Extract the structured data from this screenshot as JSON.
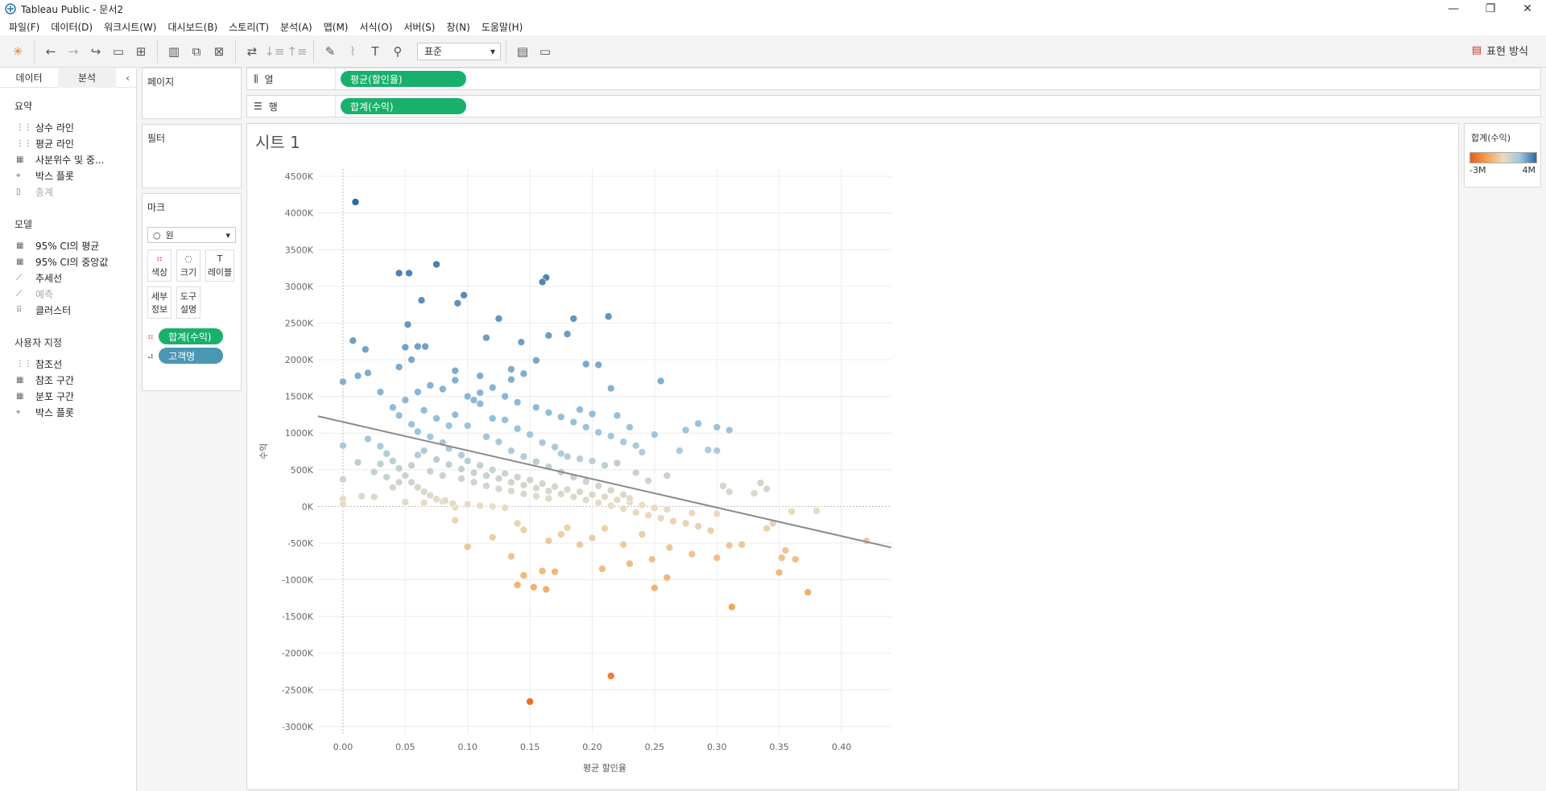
{
  "window": {
    "title": "Tableau Public - 문서2",
    "controls": [
      "—",
      "❐",
      "✕"
    ]
  },
  "menu": [
    "파일(F)",
    "데이터(D)",
    "워크시트(W)",
    "대시보드(B)",
    "스토리(T)",
    "분석(A)",
    "맵(M)",
    "서식(O)",
    "서버(S)",
    "창(N)",
    "도움말(H)"
  ],
  "toolbar": {
    "fit_select": "표준",
    "show_me": "표현 방식"
  },
  "left_pane": {
    "tabs": [
      "데이터",
      "분석"
    ],
    "summary": {
      "title": "요약",
      "items": [
        "상수 라인",
        "평균 라인",
        "사분위수 및 중...",
        "박스 플롯",
        "총계"
      ]
    },
    "model": {
      "title": "모델",
      "items": [
        "95% CI의 평균",
        "95% CI의 중앙값",
        "추세선",
        "예측",
        "클러스터"
      ]
    },
    "custom": {
      "title": "사용자 지정",
      "items": [
        "참조선",
        "참조 구간",
        "분포 구간",
        "박스 플롯"
      ]
    }
  },
  "shelves": {
    "pages": "페이지",
    "filters": "필터",
    "columns_label": "열",
    "columns_pill": "평균(할인율)",
    "rows_label": "행",
    "rows_pill": "합계(수익)"
  },
  "marks": {
    "title": "마크",
    "type": "원",
    "buttons": [
      "색상",
      "크기",
      "레이블",
      "세부\n정보",
      "도구\n설명"
    ],
    "fields": [
      "합계(수익)",
      "고객명"
    ]
  },
  "legend": {
    "title": "합계(수익)",
    "min": "-3M",
    "max": "4M",
    "colors": [
      "#e65d1a",
      "#f5a34d",
      "#e8dcc4",
      "#9ec5dd",
      "#2f6aa0"
    ]
  },
  "chart_data": {
    "type": "scatter",
    "title": "시트 1",
    "xlabel": "평균 할인율",
    "ylabel": "수익",
    "xlim": [
      -0.02,
      0.44
    ],
    "ylim": [
      -3100,
      4600
    ],
    "x_ticks": [
      "0.00",
      "0.05",
      "0.10",
      "0.15",
      "0.20",
      "0.25",
      "0.30",
      "0.35",
      "0.40"
    ],
    "y_ticks": [
      "4500K",
      "4000K",
      "3500K",
      "3000K",
      "2500K",
      "2000K",
      "1500K",
      "1000K",
      "500K",
      "0K",
      "-500K",
      "-1000K",
      "-1500K",
      "-2000K",
      "-2500K",
      "-3000K"
    ],
    "trend_line": {
      "x": [
        -0.02,
        0.44
      ],
      "y": [
        1230,
        -560
      ]
    },
    "points": [
      [
        0.01,
        4150
      ],
      [
        0.075,
        3300
      ],
      [
        0.045,
        3180
      ],
      [
        0.053,
        3180
      ],
      [
        0.163,
        3120
      ],
      [
        0.16,
        3060
      ],
      [
        0.097,
        2880
      ],
      [
        0.063,
        2810
      ],
      [
        0.092,
        2770
      ],
      [
        0.213,
        2590
      ],
      [
        0.125,
        2560
      ],
      [
        0.185,
        2560
      ],
      [
        0.052,
        2480
      ],
      [
        0.18,
        2350
      ],
      [
        0.115,
        2300
      ],
      [
        0.165,
        2330
      ],
      [
        0.008,
        2260
      ],
      [
        0.143,
        2240
      ],
      [
        0.018,
        2140
      ],
      [
        0.05,
        2170
      ],
      [
        0.06,
        2180
      ],
      [
        0.066,
        2180
      ],
      [
        0.255,
        1710
      ],
      [
        0.0,
        1700
      ],
      [
        0.205,
        1930
      ],
      [
        0.195,
        1940
      ],
      [
        0.09,
        1850
      ],
      [
        0.11,
        1780
      ],
      [
        0.03,
        1560
      ],
      [
        0.012,
        1780
      ],
      [
        0.02,
        1820
      ],
      [
        0.155,
        1990
      ],
      [
        0.135,
        1870
      ],
      [
        0.215,
        1610
      ],
      [
        0.275,
        1040
      ],
      [
        0.285,
        1130
      ],
      [
        0.3,
        1080
      ],
      [
        0.31,
        1040
      ],
      [
        0.293,
        770
      ],
      [
        0.3,
        760
      ],
      [
        0.305,
        280
      ],
      [
        0.31,
        200
      ],
      [
        0.33,
        180
      ],
      [
        0.335,
        320
      ],
      [
        0.34,
        240
      ],
      [
        0.0,
        830
      ],
      [
        0.0,
        370
      ],
      [
        0.0,
        100
      ],
      [
        0.0,
        30
      ],
      [
        0.015,
        140
      ],
      [
        0.025,
        130
      ],
      [
        0.05,
        60
      ],
      [
        0.065,
        50
      ],
      [
        0.08,
        70
      ],
      [
        0.09,
        -10
      ],
      [
        0.14,
        -230
      ],
      [
        0.145,
        -320
      ],
      [
        0.1,
        -550
      ],
      [
        0.09,
        -190
      ],
      [
        0.12,
        -420
      ],
      [
        0.135,
        -680
      ],
      [
        0.145,
        -940
      ],
      [
        0.14,
        -1070
      ],
      [
        0.153,
        -1100
      ],
      [
        0.163,
        -1130
      ],
      [
        0.16,
        -880
      ],
      [
        0.17,
        -890
      ],
      [
        0.15,
        -2660
      ],
      [
        0.215,
        -2310
      ],
      [
        0.208,
        -850
      ],
      [
        0.23,
        -780
      ],
      [
        0.25,
        -1110
      ],
      [
        0.26,
        -970
      ],
      [
        0.248,
        -720
      ],
      [
        0.262,
        -560
      ],
      [
        0.28,
        -650
      ],
      [
        0.3,
        -700
      ],
      [
        0.312,
        -1370
      ],
      [
        0.35,
        -900
      ],
      [
        0.352,
        -700
      ],
      [
        0.355,
        -600
      ],
      [
        0.363,
        -720
      ],
      [
        0.373,
        -1170
      ],
      [
        0.42,
        -470
      ],
      [
        0.31,
        -530
      ],
      [
        0.32,
        -520
      ],
      [
        0.34,
        -300
      ],
      [
        0.345,
        -230
      ],
      [
        0.36,
        -70
      ],
      [
        0.38,
        -60
      ],
      [
        0.3,
        -100
      ],
      [
        0.28,
        -90
      ],
      [
        0.26,
        -40
      ],
      [
        0.18,
        -290
      ],
      [
        0.175,
        -380
      ],
      [
        0.165,
        -470
      ],
      [
        0.19,
        -520
      ],
      [
        0.2,
        -430
      ],
      [
        0.21,
        -300
      ],
      [
        0.225,
        -520
      ],
      [
        0.24,
        -380
      ],
      [
        0.19,
        650
      ],
      [
        0.22,
        590
      ],
      [
        0.235,
        460
      ],
      [
        0.245,
        350
      ],
      [
        0.26,
        420
      ],
      [
        0.27,
        760
      ],
      [
        0.105,
        1450
      ],
      [
        0.11,
        1400
      ],
      [
        0.12,
        1200
      ],
      [
        0.13,
        1180
      ],
      [
        0.14,
        1060
      ],
      [
        0.15,
        980
      ],
      [
        0.16,
        870
      ],
      [
        0.17,
        810
      ],
      [
        0.175,
        720
      ],
      [
        0.18,
        680
      ],
      [
        0.2,
        620
      ],
      [
        0.21,
        560
      ],
      [
        0.04,
        1350
      ],
      [
        0.045,
        1240
      ],
      [
        0.055,
        1120
      ],
      [
        0.06,
        1020
      ],
      [
        0.07,
        950
      ],
      [
        0.08,
        870
      ],
      [
        0.085,
        790
      ],
      [
        0.095,
        700
      ],
      [
        0.1,
        620
      ],
      [
        0.11,
        560
      ],
      [
        0.12,
        500
      ],
      [
        0.13,
        450
      ],
      [
        0.14,
        400
      ],
      [
        0.15,
        360
      ],
      [
        0.16,
        310
      ],
      [
        0.17,
        270
      ],
      [
        0.18,
        230
      ],
      [
        0.19,
        200
      ],
      [
        0.2,
        160
      ],
      [
        0.21,
        130
      ],
      [
        0.22,
        90
      ],
      [
        0.23,
        60
      ],
      [
        0.24,
        20
      ],
      [
        0.25,
        -20
      ],
      [
        0.02,
        920
      ],
      [
        0.03,
        820
      ],
      [
        0.035,
        720
      ],
      [
        0.04,
        620
      ],
      [
        0.045,
        520
      ],
      [
        0.05,
        420
      ],
      [
        0.055,
        330
      ],
      [
        0.06,
        260
      ],
      [
        0.065,
        200
      ],
      [
        0.07,
        150
      ],
      [
        0.075,
        100
      ],
      [
        0.082,
        80
      ],
      [
        0.088,
        40
      ],
      [
        0.1,
        30
      ],
      [
        0.11,
        10
      ],
      [
        0.12,
        0
      ],
      [
        0.13,
        -20
      ],
      [
        0.085,
        1100
      ],
      [
        0.075,
        1200
      ],
      [
        0.065,
        1310
      ],
      [
        0.09,
        1250
      ],
      [
        0.1,
        1100
      ],
      [
        0.115,
        950
      ],
      [
        0.125,
        880
      ],
      [
        0.135,
        760
      ],
      [
        0.145,
        680
      ],
      [
        0.155,
        610
      ],
      [
        0.165,
        540
      ],
      [
        0.175,
        470
      ],
      [
        0.185,
        400
      ],
      [
        0.195,
        340
      ],
      [
        0.205,
        280
      ],
      [
        0.215,
        220
      ],
      [
        0.225,
        160
      ],
      [
        0.23,
        110
      ],
      [
        0.155,
        1350
      ],
      [
        0.165,
        1280
      ],
      [
        0.175,
        1220
      ],
      [
        0.185,
        1150
      ],
      [
        0.195,
        1080
      ],
      [
        0.205,
        1010
      ],
      [
        0.215,
        960
      ],
      [
        0.225,
        880
      ],
      [
        0.235,
        830
      ],
      [
        0.24,
        740
      ],
      [
        0.19,
        1320
      ],
      [
        0.2,
        1260
      ],
      [
        0.22,
        1240
      ],
      [
        0.23,
        1080
      ],
      [
        0.25,
        980
      ],
      [
        0.04,
        260
      ],
      [
        0.045,
        330
      ],
      [
        0.035,
        400
      ],
      [
        0.025,
        470
      ],
      [
        0.012,
        600
      ],
      [
        0.03,
        580
      ],
      [
        0.055,
        560
      ],
      [
        0.07,
        480
      ],
      [
        0.08,
        420
      ],
      [
        0.095,
        380
      ],
      [
        0.105,
        330
      ],
      [
        0.115,
        280
      ],
      [
        0.125,
        240
      ],
      [
        0.135,
        210
      ],
      [
        0.145,
        170
      ],
      [
        0.155,
        140
      ],
      [
        0.165,
        110
      ],
      [
        0.06,
        700
      ],
      [
        0.065,
        760
      ],
      [
        0.075,
        640
      ],
      [
        0.085,
        570
      ],
      [
        0.095,
        510
      ],
      [
        0.105,
        460
      ],
      [
        0.115,
        420
      ],
      [
        0.125,
        380
      ],
      [
        0.135,
        330
      ],
      [
        0.145,
        290
      ],
      [
        0.155,
        250
      ],
      [
        0.165,
        210
      ],
      [
        0.175,
        170
      ],
      [
        0.185,
        130
      ],
      [
        0.195,
        90
      ],
      [
        0.205,
        50
      ],
      [
        0.215,
        10
      ],
      [
        0.225,
        -30
      ],
      [
        0.235,
        -80
      ],
      [
        0.245,
        -120
      ],
      [
        0.255,
        -160
      ],
      [
        0.265,
        -200
      ],
      [
        0.275,
        -230
      ],
      [
        0.285,
        -270
      ],
      [
        0.295,
        -330
      ],
      [
        0.11,
        1550
      ],
      [
        0.12,
        1620
      ],
      [
        0.13,
        1500
      ],
      [
        0.14,
        1420
      ],
      [
        0.06,
        1560
      ],
      [
        0.07,
        1650
      ],
      [
        0.08,
        1600
      ],
      [
        0.09,
        1720
      ],
      [
        0.1,
        1500
      ],
      [
        0.05,
        1450
      ],
      [
        0.045,
        1900
      ],
      [
        0.055,
        2000
      ],
      [
        0.135,
        1730
      ],
      [
        0.145,
        1810
      ]
    ]
  }
}
